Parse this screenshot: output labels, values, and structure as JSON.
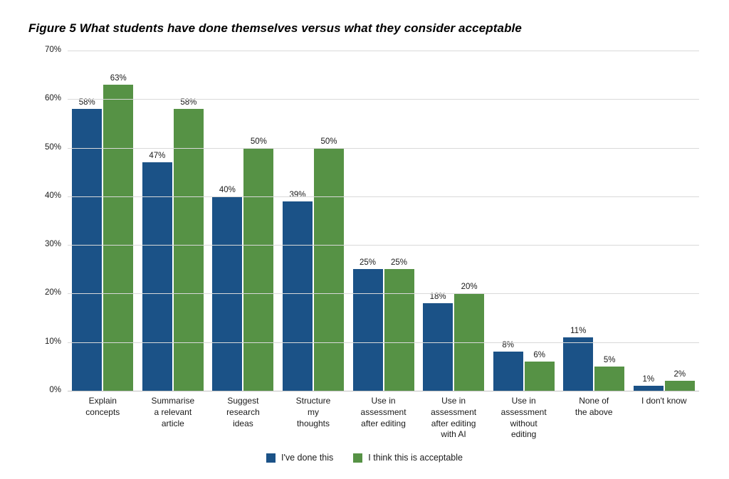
{
  "title": "Figure 5 What students have done themselves versus what they consider acceptable",
  "chart_data": {
    "type": "bar",
    "title": "Figure 5 What students have done themselves versus what they consider acceptable",
    "categories": [
      "Explain\nconcepts",
      "Summarise\na relevant\narticle",
      "Suggest\nresearch\nideas",
      "Structure\nmy\nthoughts",
      "Use in\nassessment\nafter editing",
      "Use in\nassessment\nafter editing\nwith AI",
      "Use in\nassessment\nwithout\nediting",
      "None of\nthe above",
      "I don't know"
    ],
    "series": [
      {
        "name": "I've done this",
        "color": "#1B5287",
        "values": [
          58,
          47,
          40,
          39,
          25,
          18,
          8,
          11,
          1
        ]
      },
      {
        "name": "I think this is acceptable",
        "color": "#569245",
        "values": [
          63,
          58,
          50,
          50,
          25,
          20,
          6,
          5,
          2
        ]
      }
    ],
    "y_tick_labels": [
      "70%",
      "60%",
      "50%",
      "40%",
      "30%",
      "20%",
      "10%",
      "0%"
    ],
    "y_tick_values": [
      70,
      60,
      50,
      40,
      30,
      20,
      10,
      0
    ],
    "ylim": [
      0,
      70
    ],
    "xlabel": "",
    "ylabel": "",
    "grid": "horizontal",
    "legend_position": "bottom",
    "value_label_suffix": "%",
    "gridline_color": "#d9d9d9",
    "axis_line_color": "#c2c2c2",
    "background_color": "#ffffff"
  }
}
